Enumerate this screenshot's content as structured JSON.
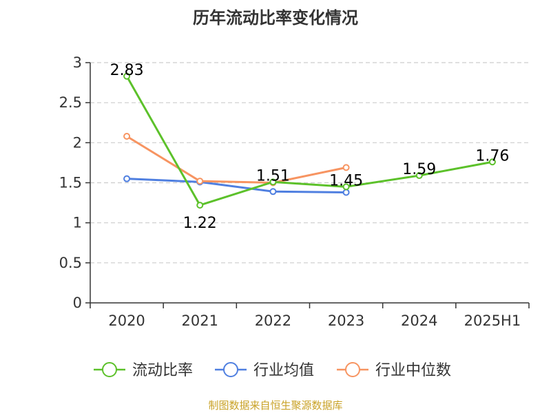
{
  "title": "历年流动比率变化情况",
  "source": "制图数据来自恒生聚源数据库",
  "chart_data": {
    "type": "line",
    "title": "历年流动比率变化情况",
    "xlabel": "",
    "ylabel": "",
    "categories": [
      "2020",
      "2021",
      "2022",
      "2023",
      "2024",
      "2025H1"
    ],
    "ylim": [
      0,
      3
    ],
    "yticks": [
      "0",
      "0.5",
      "1",
      "1.5",
      "2",
      "2.5",
      "3"
    ],
    "grid": true,
    "legend_position": "bottom",
    "series": [
      {
        "name": "流动比率",
        "color": "#5cc12a",
        "values": [
          2.83,
          1.22,
          1.51,
          1.45,
          1.59,
          1.76
        ],
        "labels": [
          "2.83",
          "1.22",
          "1.51",
          "1.45",
          "1.59",
          "1.76"
        ]
      },
      {
        "name": "行业均值",
        "color": "#4f7fe0",
        "values": [
          1.55,
          1.51,
          1.39,
          1.38,
          null,
          null
        ],
        "labels": []
      },
      {
        "name": "行业中位数",
        "color": "#f79461",
        "values": [
          2.08,
          1.52,
          1.5,
          1.69,
          null,
          null
        ],
        "labels": []
      }
    ]
  }
}
